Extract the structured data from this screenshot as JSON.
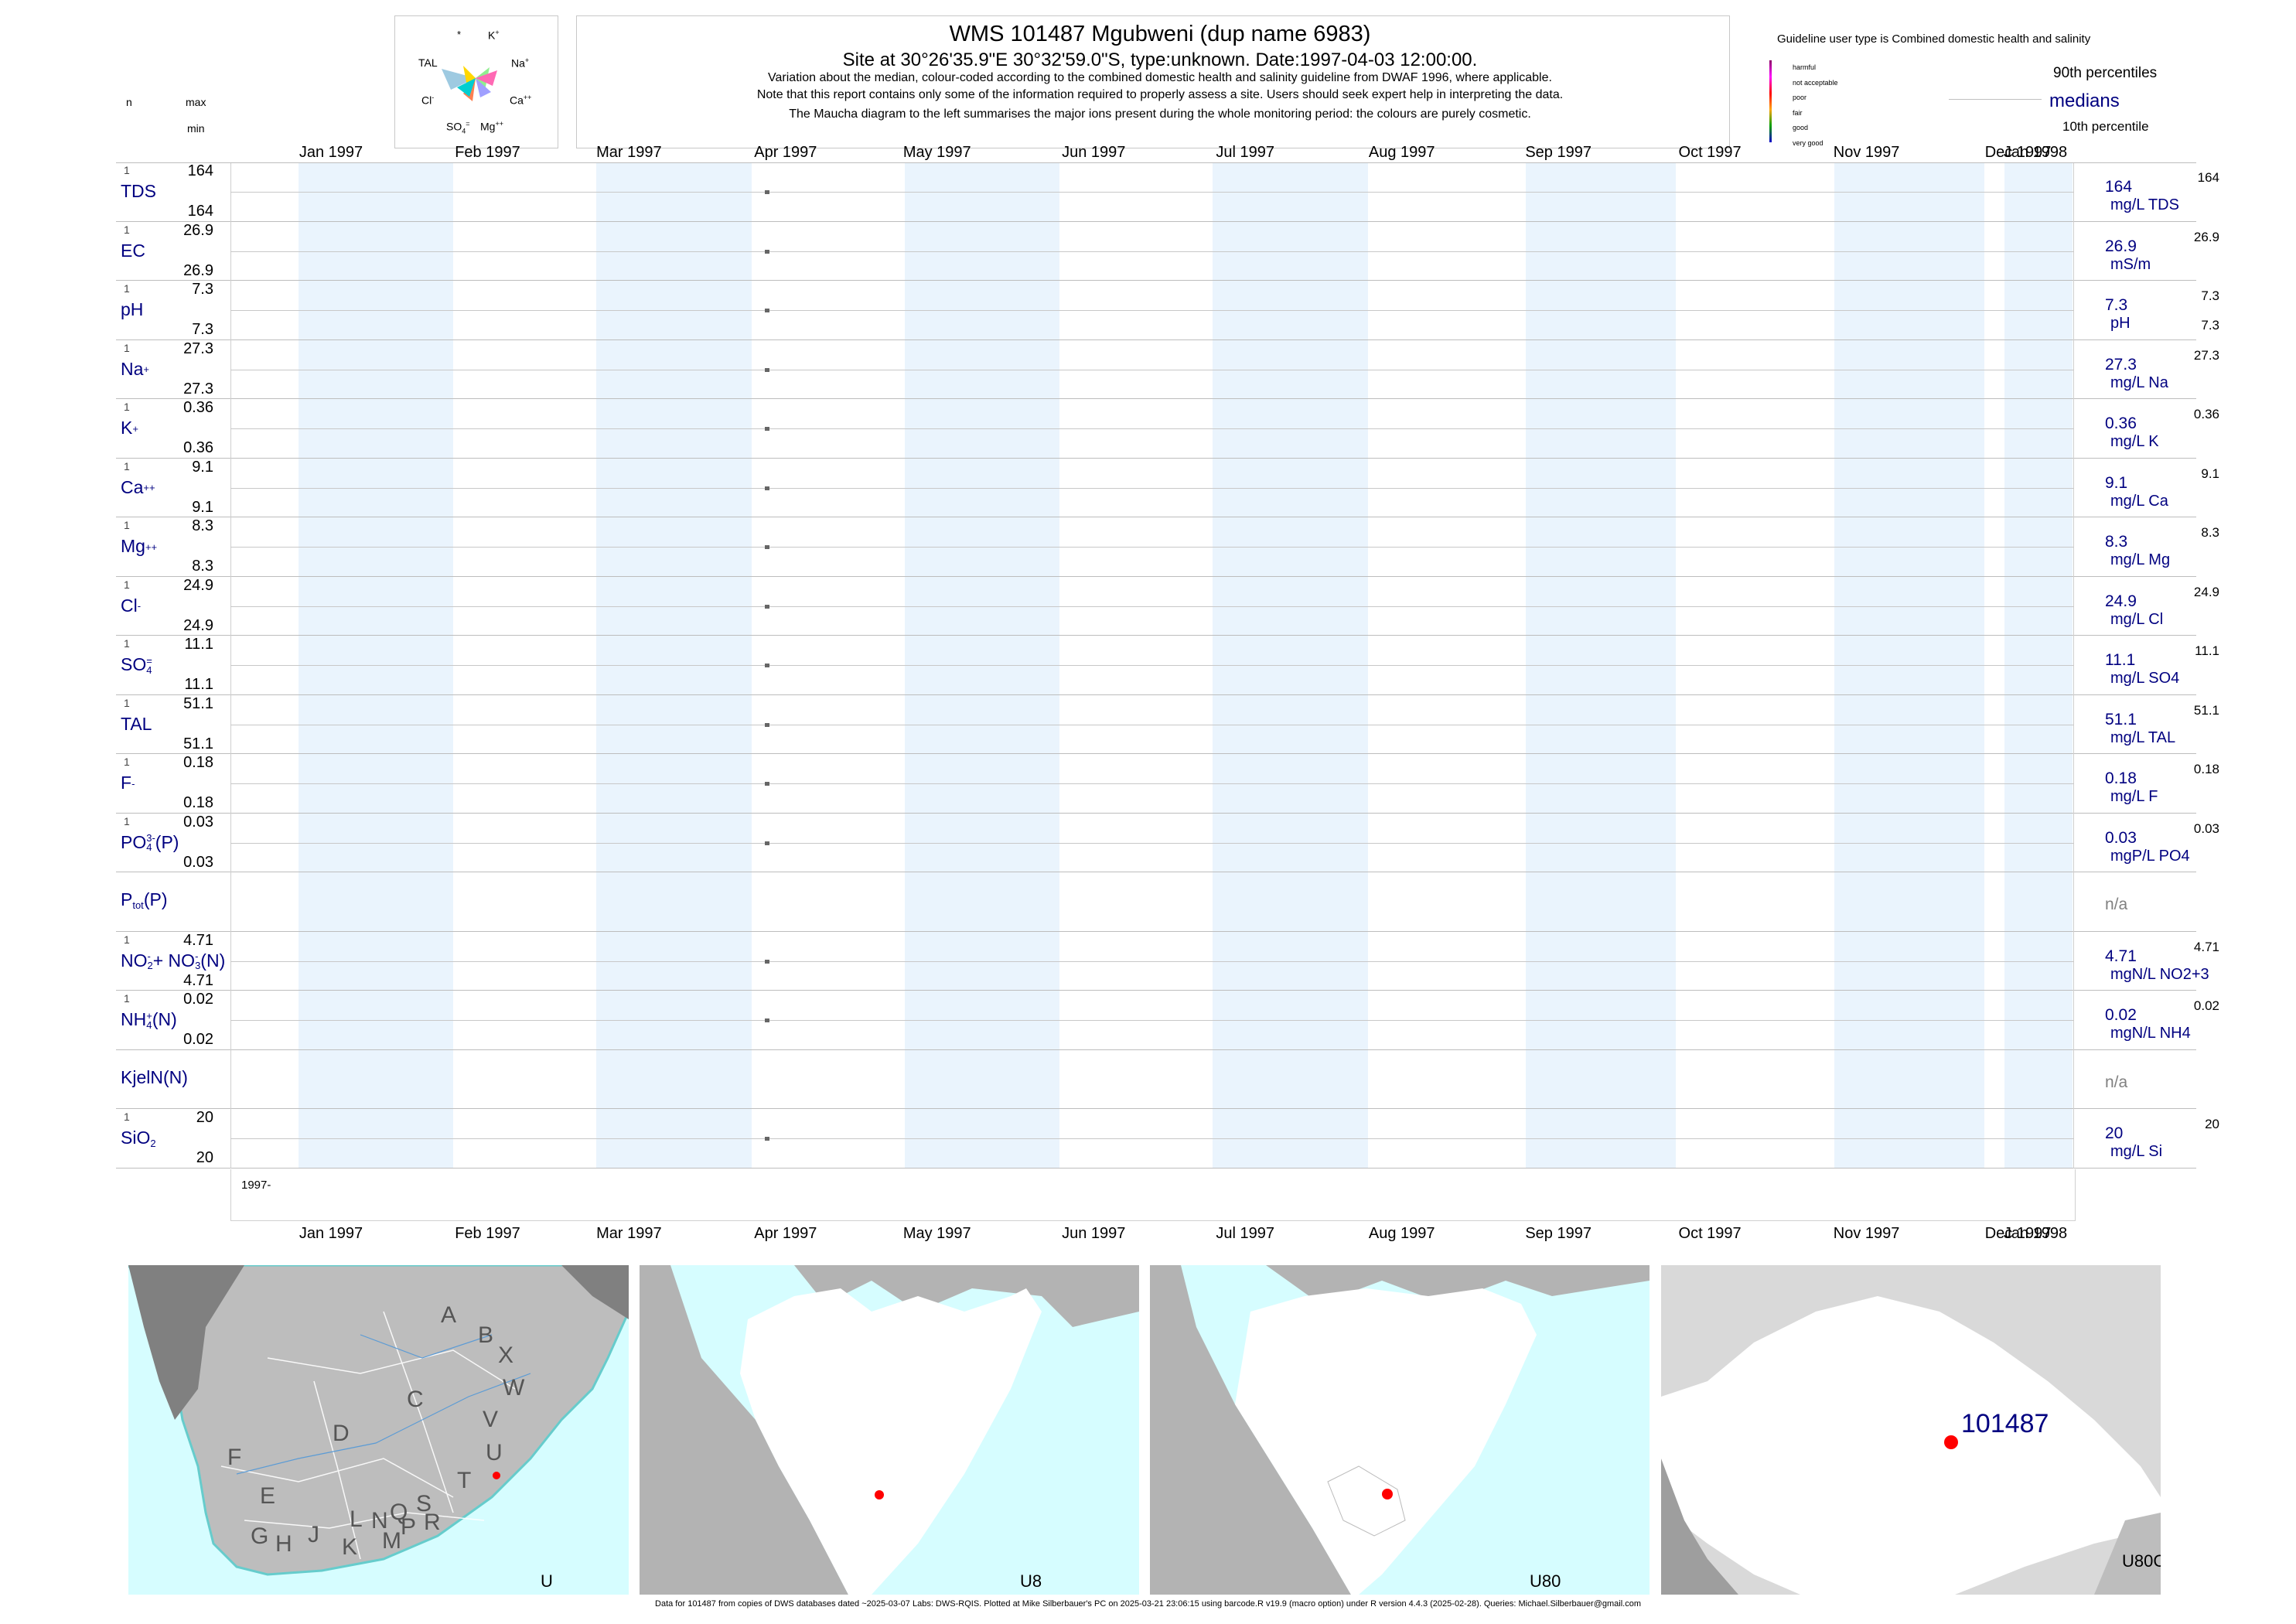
{
  "header": {
    "title": "WMS 101487  Mgubweni (dup name 6983)",
    "subtitle": "Site at 30°26'35.9\"E 30°32'59.0\"S, type:unknown. Date:1997-04-03 12:00:00.",
    "note1": "Variation about the median,  colour-coded according to the combined domestic health and salinity guideline from DWAF 1996, where applicable.",
    "note2": "Note that this report contains only some of the information required to properly assess a site. Users should seek expert help in interpreting the data.",
    "note3": "The Maucha diagram to the left summarises the major ions present during the whole monitoring period: the colours are purely cosmetic."
  },
  "maucha": {
    "labels": {
      "star": "*",
      "k": "K",
      "k_sup": "+",
      "tal": "TAL",
      "na": "Na",
      "na_sup": "+",
      "cl": "Cl",
      "cl_sup": "-",
      "ca": "Ca",
      "ca_sup": "++",
      "so4": "SO",
      "so4_sub": "4",
      "so4_sup": "=",
      "mg": "Mg",
      "mg_sup": "++"
    }
  },
  "left_header": {
    "n": "n",
    "max": "max",
    "min": "min"
  },
  "legend": {
    "guideline": "Guideline user type is Combined domestic health and salinity",
    "categories": [
      {
        "label": "harmful",
        "color": "#8b0066"
      },
      {
        "label": "not acceptable",
        "color": "#ff00ff"
      },
      {
        "label": "poor",
        "color": "#ff0000"
      },
      {
        "label": "fair",
        "color": "#ffa500"
      },
      {
        "label": "good",
        "color": "#00a000"
      },
      {
        "label": "very good",
        "color": "#0000cc"
      }
    ],
    "p90": "90th percentiles",
    "medians": "medians",
    "p10": "10th percentile"
  },
  "chart_data": {
    "type": "scatter",
    "x_axis": {
      "start": "1997-01-01",
      "end": "1998-01-01",
      "tick_labels": [
        "Jan 1997",
        "Feb 1997",
        "Mar 1997",
        "Apr 1997",
        "May 1997",
        "Jun 1997",
        "Jul 1997",
        "Aug 1997",
        "Sep 1997",
        "Oct 1997",
        "Nov 1997",
        "Dec 1997",
        "Jan 1998"
      ]
    },
    "year_label": "1997-",
    "sample_date": "1997-04-03",
    "series": [
      {
        "name": "TDS",
        "n": "1",
        "max": "164",
        "min": "164",
        "median": "164",
        "unit": "mg/L TDS",
        "p90": "164",
        "p10": "",
        "value": 164
      },
      {
        "name": "EC",
        "n": "1",
        "max": "26.9",
        "min": "26.9",
        "median": "26.9",
        "unit": "mS/m",
        "p90": "26.9",
        "p10": "",
        "value": 26.9
      },
      {
        "name": "pH",
        "n": "1",
        "max": "7.3",
        "min": "7.3",
        "median": "7.3",
        "unit": "pH",
        "p90": "7.3",
        "p10": "7.3",
        "value": 7.3
      },
      {
        "name": "Na",
        "sup": "+",
        "n": "1",
        "max": "27.3",
        "min": "27.3",
        "median": "27.3",
        "unit": "mg/L Na",
        "p90": "27.3",
        "p10": "",
        "value": 27.3
      },
      {
        "name": "K",
        "sup": "+",
        "n": "1",
        "max": "0.36",
        "min": "0.36",
        "median": "0.36",
        "unit": "mg/L K",
        "p90": "0.36",
        "p10": "",
        "value": 0.36
      },
      {
        "name": "Ca",
        "sup": "++",
        "n": "1",
        "max": "9.1",
        "min": "9.1",
        "median": "9.1",
        "unit": "mg/L Ca",
        "p90": "9.1",
        "p10": "",
        "value": 9.1
      },
      {
        "name": "Mg",
        "sup": "++",
        "n": "1",
        "max": "8.3",
        "min": "8.3",
        "median": "8.3",
        "unit": "mg/L Mg",
        "p90": "8.3",
        "p10": "",
        "value": 8.3
      },
      {
        "name": "Cl",
        "sup": "-",
        "n": "1",
        "max": "24.9",
        "min": "24.9",
        "median": "24.9",
        "unit": "mg/L Cl",
        "p90": "24.9",
        "p10": "",
        "value": 24.9
      },
      {
        "name": "SO",
        "sub": "4",
        "sup": "=",
        "n": "1",
        "max": "11.1",
        "min": "11.1",
        "median": "11.1",
        "unit": "mg/L SO4",
        "p90": "11.1",
        "p10": "",
        "value": 11.1
      },
      {
        "name": "TAL",
        "n": "1",
        "max": "51.1",
        "min": "51.1",
        "median": "51.1",
        "unit": "mg/L TAL",
        "p90": "51.1",
        "p10": "",
        "value": 51.1
      },
      {
        "name": "F",
        "sup": "-",
        "n": "1",
        "max": "0.18",
        "min": "0.18",
        "median": "0.18",
        "unit": "mg/L F",
        "p90": "0.18",
        "p10": "",
        "value": 0.18
      },
      {
        "name": "PO",
        "sub": "4",
        "sup": "3-",
        "tail": "(P)",
        "n": "1",
        "max": "0.03",
        "min": "0.03",
        "median": "0.03",
        "unit": "mgP/L PO4",
        "p90": "0.03",
        "p10": "",
        "value": 0.03
      },
      {
        "name": "P",
        "sub": "tot",
        "tail": "(P)",
        "n": "",
        "max": "",
        "min": "",
        "median": "n/a",
        "unit": "",
        "p90": "",
        "p10": "",
        "value": null
      },
      {
        "name": "NO",
        "sub": "2",
        "sup": "-",
        "mid": "+ NO",
        "sub2": "3",
        "sup2": "-",
        "tail": "(N)",
        "n": "1",
        "max": "4.71",
        "min": "4.71",
        "median": "4.71",
        "unit": "mgN/L NO2+3",
        "p90": "4.71",
        "p10": "",
        "value": 4.71
      },
      {
        "name": "NH",
        "sub": "4",
        "sup": "+",
        "tail": "(N)",
        "n": "1",
        "max": "0.02",
        "min": "0.02",
        "median": "0.02",
        "unit": "mgN/L NH4",
        "p90": "0.02",
        "p10": "",
        "value": 0.02
      },
      {
        "name": "KjelN(N)",
        "n": "",
        "max": "",
        "min": "",
        "median": "n/a",
        "unit": "",
        "p90": "",
        "p10": "",
        "value": null
      },
      {
        "name": "SiO",
        "sub": "2",
        "n": "1",
        "max": "20",
        "min": "20",
        "median": "20",
        "unit": "mg/L Si",
        "p90": "20",
        "p10": "",
        "value": 20
      }
    ]
  },
  "maps": {
    "map1": {
      "label": "U",
      "letters": [
        "A",
        "B",
        "X",
        "C",
        "W",
        "D",
        "V",
        "U",
        "F",
        "E",
        "T",
        "L",
        "N",
        "Q",
        "S",
        "R",
        "G",
        "H",
        "J",
        "K",
        "M",
        "P"
      ]
    },
    "map2": {
      "label": "U8"
    },
    "map3": {
      "label": "U80"
    },
    "map4": {
      "label": "U80C",
      "site_label": "101487"
    },
    "colors": {
      "sea": "#d6fdff",
      "land_out": "#b3b3b3",
      "land_in": "#ffffff",
      "site": "#ff0000",
      "dark": "#7f7f7f"
    }
  },
  "footer": "Data for 101487 from copies of DWS databases dated ~2025-03-07 Labs: DWS-RQIS. Plotted at Mike Silberbauer's PC on 2025-03-21 23:06:15 using barcode.R v19.9 (macro option) under R version 4.4.3 (2025-02-28). Queries: Michael.Silberbauer@gmail.com"
}
